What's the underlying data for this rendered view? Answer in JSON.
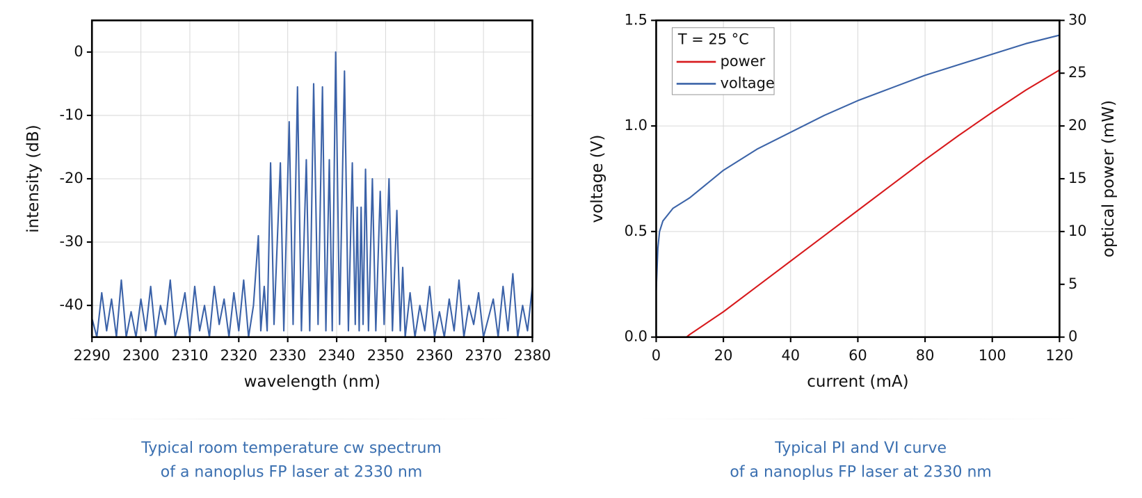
{
  "chart_data": [
    {
      "type": "line",
      "caption": [
        "Typical room temperature cw spectrum",
        "of a nanoplus FP laser at 2330 nm"
      ],
      "xlabel": "wavelength (nm)",
      "ylabel": "intensity (dB)",
      "color": "#3b62a8",
      "grid": true,
      "xlim": [
        2290,
        2380
      ],
      "xticks": [
        2290,
        2300,
        2310,
        2320,
        2330,
        2340,
        2350,
        2360,
        2370,
        2380
      ],
      "ylim": [
        -45,
        5
      ],
      "yticks": [
        -40,
        -30,
        -20,
        -10,
        0
      ],
      "x": [
        2290,
        2291,
        2292,
        2293,
        2294,
        2295,
        2296,
        2297,
        2298,
        2299,
        2300,
        2301,
        2302,
        2303,
        2304,
        2305,
        2306,
        2307,
        2308,
        2309,
        2310,
        2311,
        2312,
        2313,
        2314,
        2315,
        2316,
        2317,
        2318,
        2319,
        2320,
        2321,
        2322,
        2323,
        2324,
        2324.5,
        2325.2,
        2325.8,
        2326.5,
        2327.2,
        2328.5,
        2329.2,
        2330.3,
        2331.1,
        2332,
        2332.8,
        2333.8,
        2334.5,
        2335.3,
        2336.2,
        2337.1,
        2337.8,
        2338.5,
        2339.1,
        2339.8,
        2340.6,
        2341.6,
        2342.4,
        2343.2,
        2343.8,
        2344.2,
        2344.6,
        2345,
        2345.4,
        2345.9,
        2346.5,
        2347.3,
        2348,
        2348.9,
        2349.7,
        2350.7,
        2351.4,
        2352.3,
        2353,
        2353.5,
        2354,
        2355,
        2356,
        2357,
        2358,
        2359,
        2360,
        2361,
        2362,
        2363,
        2364,
        2365,
        2366,
        2367,
        2368,
        2369,
        2370,
        2371,
        2372,
        2373,
        2374,
        2375,
        2376,
        2377,
        2378,
        2379,
        2380
      ],
      "values": [
        -42,
        -45,
        -38,
        -44,
        -39,
        -45,
        -36,
        -45,
        -41,
        -45,
        -39,
        -44,
        -37,
        -45,
        -40,
        -43,
        -36,
        -45,
        -42,
        -38,
        -45,
        -37,
        -44,
        -40,
        -45,
        -37,
        -43,
        -39,
        -45,
        -38,
        -44,
        -36,
        -45,
        -40,
        -29,
        -44,
        -37,
        -44,
        -17.5,
        -43,
        -17.5,
        -44,
        -11,
        -43,
        -5.5,
        -44,
        -17,
        -44,
        -5,
        -43,
        -5.5,
        -44,
        -17,
        -44,
        0,
        -43,
        -3,
        -44,
        -17.5,
        -43,
        -24.5,
        -44,
        -24.5,
        -43,
        -18.5,
        -44,
        -20,
        -44,
        -22,
        -43,
        -20,
        -44,
        -25,
        -44,
        -34,
        -45,
        -38,
        -45,
        -40,
        -44,
        -37,
        -45,
        -41,
        -45,
        -39,
        -44,
        -36,
        -45,
        -40,
        -43,
        -38,
        -45,
        -42,
        -39,
        -45,
        -37,
        -44,
        -35,
        -45,
        -40,
        -44,
        -37
      ]
    },
    {
      "type": "line",
      "caption": [
        "Typical PI and VI curve",
        "of a nanoplus FP laser at 2330 nm"
      ],
      "xlabel": "current (mA)",
      "ylabel": "voltage (V)",
      "y2label": "optical power (mW)",
      "grid": true,
      "legend_title": "T = 25 °C",
      "legend": "upper left",
      "xlim": [
        0,
        120
      ],
      "xticks": [
        0,
        20,
        40,
        60,
        80,
        100,
        120
      ],
      "ylim": [
        0,
        1.5
      ],
      "yticks": [
        {
          "value": 0,
          "label": "0.0"
        },
        {
          "value": 0.5,
          "label": "0.5"
        },
        {
          "value": 1,
          "label": "1.0"
        },
        1.5
      ],
      "y2lim": [
        0,
        30
      ],
      "y2ticks": [
        0,
        5,
        10,
        15,
        20,
        25,
        30
      ],
      "x": [
        0,
        0.5,
        1,
        2,
        5,
        9,
        10,
        20,
        30,
        40,
        50,
        60,
        70,
        80,
        90,
        100,
        110,
        120
      ],
      "series": [
        {
          "name": "power",
          "color": "#d7191c",
          "axis": "y2",
          "values": [
            0,
            0,
            0,
            0,
            0,
            0,
            0.25,
            2.4,
            4.8,
            7.2,
            9.6,
            12.0,
            14.4,
            16.8,
            19.1,
            21.3,
            23.4,
            25.3
          ]
        },
        {
          "name": "voltage",
          "color": "#3c64a8",
          "axis": "y",
          "values": [
            0.22,
            0.42,
            0.5,
            0.55,
            0.61,
            0.65,
            0.66,
            0.79,
            0.89,
            0.97,
            1.05,
            1.12,
            1.18,
            1.24,
            1.29,
            1.34,
            1.39,
            1.43
          ]
        }
      ]
    }
  ]
}
